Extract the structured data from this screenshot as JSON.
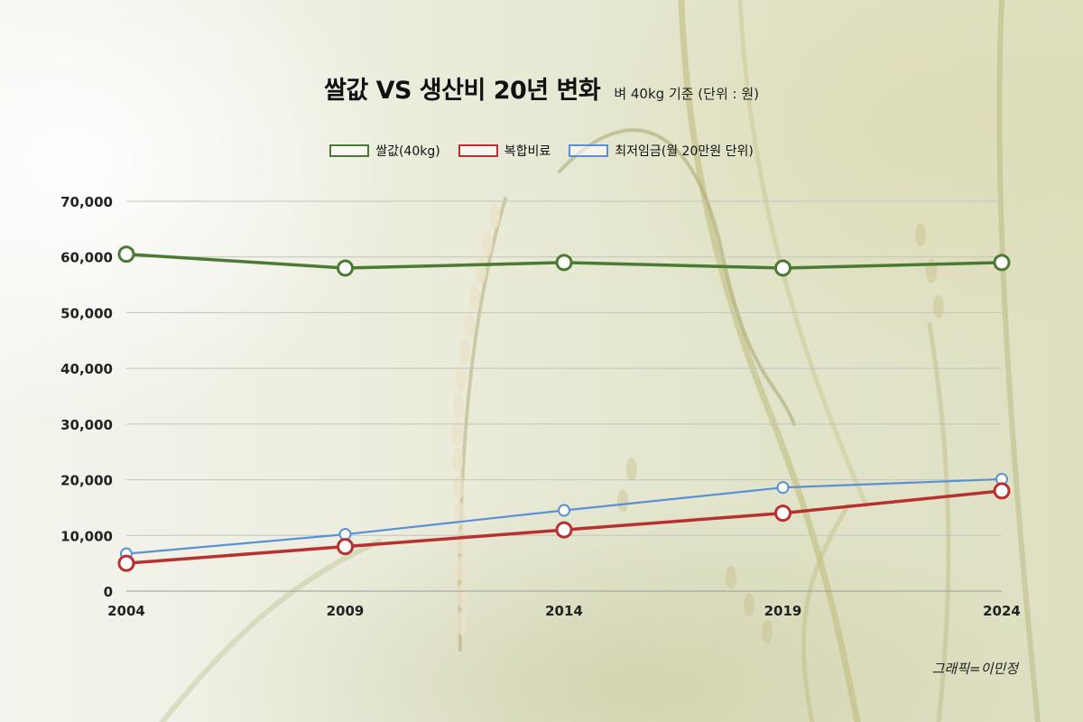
{
  "title": "쌀값 VS 생산비 20년 변화",
  "subtitle": "벼 40kg 기준 (단위 : 원)",
  "credit": "그래픽=이민정",
  "colors": {
    "rice": "#4b7a34",
    "fertilizer": "#b8302f",
    "wage": "#5b8fd6"
  },
  "chart_data": {
    "type": "line",
    "x": [
      "2004",
      "2009",
      "2014",
      "2019",
      "2024"
    ],
    "ylim": [
      0,
      70000
    ],
    "yticks": [
      "0",
      "10,000",
      "20,000",
      "30,000",
      "40,000",
      "50,000",
      "60,000",
      "70,000"
    ],
    "grid": true,
    "legend": "top-center",
    "series": [
      {
        "name": "쌀값(40kg)",
        "color": "#4b7a34",
        "values": [
          60500,
          58000,
          59000,
          58000,
          59000
        ]
      },
      {
        "name": "복합비료",
        "color": "#b8302f",
        "values": [
          5000,
          8000,
          11000,
          14000,
          18000
        ]
      },
      {
        "name": "최저임금(월 20만원 단위)",
        "color": "#5b8fd6",
        "values": [
          6700,
          10200,
          14500,
          18600,
          20100
        ]
      }
    ]
  }
}
